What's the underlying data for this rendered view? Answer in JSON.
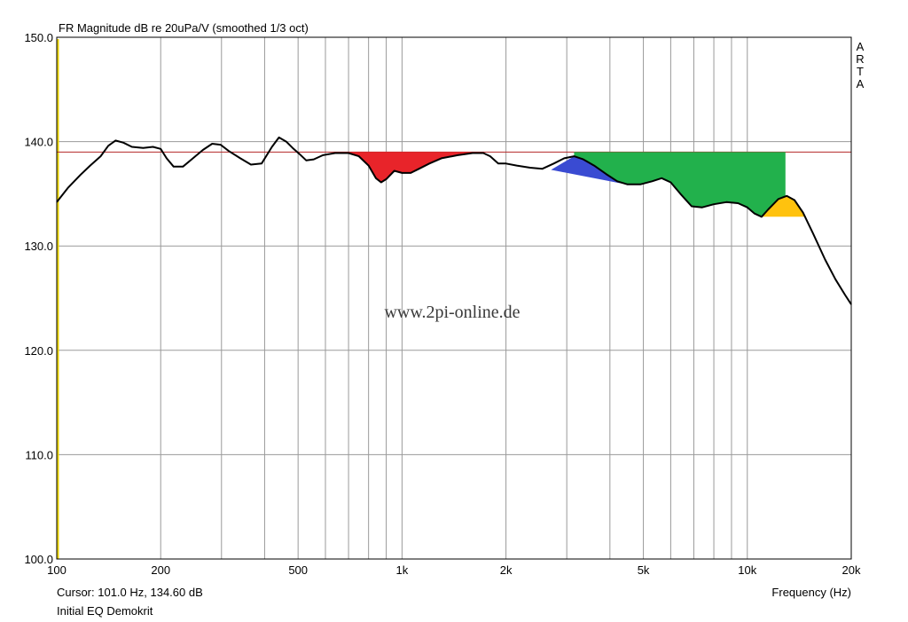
{
  "chart_data": {
    "type": "line",
    "title": "FR Magnitude dB re 20uPa/V (smoothed 1/3 oct)",
    "xlabel": "Frequency (Hz)",
    "ylabel": "",
    "x_scale": "log",
    "xlim": [
      100,
      20000
    ],
    "ylim": [
      100,
      150
    ],
    "x_ticks": [
      {
        "value": 100,
        "label": "100"
      },
      {
        "value": 200,
        "label": "200"
      },
      {
        "value": 500,
        "label": "500"
      },
      {
        "value": 1000,
        "label": "1k"
      },
      {
        "value": 2000,
        "label": "2k"
      },
      {
        "value": 5000,
        "label": "5k"
      },
      {
        "value": 10000,
        "label": "10k"
      },
      {
        "value": 20000,
        "label": "20k"
      }
    ],
    "y_ticks": [
      {
        "value": 100,
        "label": "100.0"
      },
      {
        "value": 110,
        "label": "110.0"
      },
      {
        "value": 120,
        "label": "120.0"
      },
      {
        "value": 130,
        "label": "130.0"
      },
      {
        "value": 140,
        "label": "140.0"
      },
      {
        "value": 150,
        "label": "150.0"
      }
    ],
    "grid": true,
    "reference_level_db": 139.0,
    "series": [
      {
        "color": "#000000",
        "points": [
          [
            100,
            134.2
          ],
          [
            108,
            135.6
          ],
          [
            117,
            136.8
          ],
          [
            125,
            137.7
          ],
          [
            134,
            138.6
          ],
          [
            141,
            139.6
          ],
          [
            148,
            140.1
          ],
          [
            156,
            139.9
          ],
          [
            165,
            139.5
          ],
          [
            178,
            139.4
          ],
          [
            190,
            139.5
          ],
          [
            200,
            139.3
          ],
          [
            208,
            138.4
          ],
          [
            218,
            137.6
          ],
          [
            232,
            137.6
          ],
          [
            248,
            138.4
          ],
          [
            265,
            139.2
          ],
          [
            282,
            139.8
          ],
          [
            298,
            139.7
          ],
          [
            315,
            139.1
          ],
          [
            340,
            138.4
          ],
          [
            365,
            137.8
          ],
          [
            392,
            137.9
          ],
          [
            420,
            139.5
          ],
          [
            440,
            140.4
          ],
          [
            462,
            140.0
          ],
          [
            482,
            139.4
          ],
          [
            505,
            138.8
          ],
          [
            528,
            138.2
          ],
          [
            555,
            138.3
          ],
          [
            590,
            138.7
          ],
          [
            640,
            138.9
          ],
          [
            700,
            138.9
          ],
          [
            750,
            138.6
          ],
          [
            800,
            137.7
          ],
          [
            840,
            136.5
          ],
          [
            870,
            136.1
          ],
          [
            900,
            136.4
          ],
          [
            950,
            137.2
          ],
          [
            1000,
            137.0
          ],
          [
            1060,
            137.0
          ],
          [
            1120,
            137.4
          ],
          [
            1200,
            137.9
          ],
          [
            1300,
            138.4
          ],
          [
            1450,
            138.7
          ],
          [
            1600,
            138.9
          ],
          [
            1720,
            138.9
          ],
          [
            1800,
            138.6
          ],
          [
            1900,
            137.9
          ],
          [
            2000,
            137.9
          ],
          [
            2150,
            137.7
          ],
          [
            2350,
            137.5
          ],
          [
            2550,
            137.4
          ],
          [
            2750,
            137.9
          ],
          [
            2950,
            138.4
          ],
          [
            3150,
            138.6
          ],
          [
            3350,
            138.3
          ],
          [
            3600,
            137.7
          ],
          [
            3900,
            136.9
          ],
          [
            4200,
            136.2
          ],
          [
            4500,
            135.9
          ],
          [
            4900,
            135.9
          ],
          [
            5300,
            136.2
          ],
          [
            5650,
            136.5
          ],
          [
            6000,
            136.1
          ],
          [
            6400,
            135.0
          ],
          [
            6900,
            133.8
          ],
          [
            7400,
            133.7
          ],
          [
            8000,
            134.0
          ],
          [
            8700,
            134.2
          ],
          [
            9400,
            134.1
          ],
          [
            10000,
            133.7
          ],
          [
            10500,
            133.1
          ],
          [
            11000,
            132.8
          ],
          [
            11500,
            133.5
          ],
          [
            12300,
            134.5
          ],
          [
            13000,
            134.8
          ],
          [
            13700,
            134.4
          ],
          [
            14500,
            133.2
          ],
          [
            15500,
            131.2
          ],
          [
            16800,
            128.7
          ],
          [
            18000,
            126.8
          ],
          [
            19200,
            125.3
          ],
          [
            20000,
            124.4
          ]
        ]
      }
    ],
    "fills": [
      {
        "color": "#e8242a",
        "from_hz": 700,
        "to_hz": 1720,
        "level_db": 139.0
      },
      {
        "color": "#3a4bd2",
        "polygon": [
          [
            2700,
            137.3
          ],
          [
            3150,
            138.6
          ],
          [
            3300,
            138.4
          ],
          [
            3700,
            137.4
          ],
          [
            4300,
            136.0
          ]
        ]
      },
      {
        "color": "#22b14c",
        "polygon": [
          [
            3150,
            139.0
          ],
          [
            12900,
            139.0
          ],
          [
            12900,
            134.8
          ],
          [
            12300,
            134.5
          ],
          [
            11500,
            133.5
          ],
          [
            11000,
            132.8
          ],
          [
            10500,
            133.1
          ],
          [
            10000,
            133.7
          ],
          [
            9400,
            134.1
          ],
          [
            8700,
            134.2
          ],
          [
            8000,
            134.0
          ],
          [
            7400,
            133.7
          ],
          [
            6900,
            133.8
          ],
          [
            6400,
            135.0
          ],
          [
            6000,
            136.1
          ],
          [
            5650,
            136.5
          ],
          [
            5300,
            136.2
          ],
          [
            4900,
            135.9
          ],
          [
            4300,
            136.0
          ],
          [
            3700,
            137.4
          ],
          [
            3300,
            138.4
          ],
          [
            3150,
            138.6
          ]
        ]
      },
      {
        "color": "#ffc20e",
        "polygon": [
          [
            11000,
            132.8
          ],
          [
            11500,
            133.5
          ],
          [
            12300,
            134.5
          ],
          [
            13000,
            134.8
          ],
          [
            13700,
            134.4
          ],
          [
            14500,
            133.2
          ],
          [
            14800,
            132.8
          ]
        ]
      }
    ],
    "colors": {
      "curve": "#000000",
      "grid": "#9a9a9a",
      "reference_line": "#b42828",
      "left_marker": "#e8d200"
    }
  },
  "watermark": "www.2pi-online.de",
  "side_label": [
    "A",
    "R",
    "T",
    "A"
  ],
  "cursor_text": "Cursor: 101.0 Hz, 134.60 dB",
  "status_text": "Initial EQ Demokrit"
}
